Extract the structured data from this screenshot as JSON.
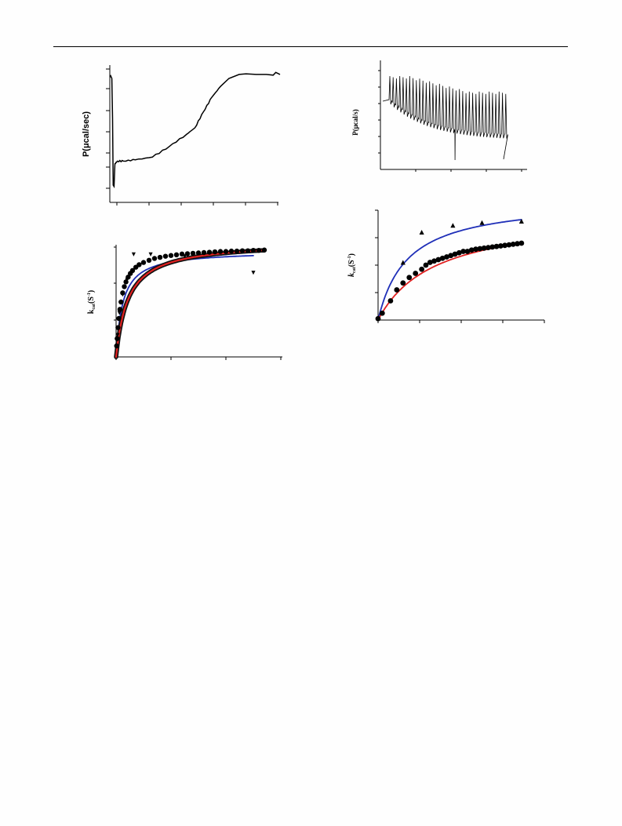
{
  "panels": {
    "a": {
      "ylabel": "P(μcal/sec)"
    },
    "b": {
      "ylabel": "P(μcal/s)"
    },
    "c": {
      "ylabel_main": "k",
      "ylabel_sub": "cat",
      "ylabel_unit": "(S",
      "ylabel_sup": "-1",
      "ylabel_close": ")"
    },
    "d": {
      "ylabel_main": "k",
      "ylabel_sub": "cat",
      "ylabel_unit": "(S",
      "ylabel_sup": "-1",
      "ylabel_close": ")"
    }
  },
  "colors": {
    "ink": "#000000",
    "fit_red": "#e02020",
    "fit_blue": "#1f2fb8",
    "fit_dark": "#111111"
  },
  "chart_data": [
    {
      "id": "a",
      "type": "line",
      "title": "",
      "xlabel": "",
      "ylabel": "P(μcal/sec)",
      "grid": false,
      "xlim": [
        0,
        10
      ],
      "ylim": [
        0,
        10
      ],
      "series": [
        {
          "x": [
            0,
            0.05,
            0.12,
            0.16,
            0.2,
            0.25,
            0.3,
            0.45,
            0.8,
            1.5,
            2.5,
            3.5,
            4.5,
            5.0,
            5.5,
            6.0,
            6.5,
            7.0,
            7.6,
            8.0,
            8.6,
            9.2,
            9.6,
            9.75,
            10.0
          ],
          "y": [
            9.1,
            9.2,
            9.0,
            6.0,
            1.0,
            0.9,
            2.6,
            2.8,
            2.8,
            2.9,
            3.1,
            3.9,
            4.8,
            5.3,
            6.5,
            7.6,
            8.4,
            9.0,
            9.3,
            9.35,
            9.3,
            9.3,
            9.25,
            9.45,
            9.3
          ]
        }
      ]
    },
    {
      "id": "b",
      "type": "line",
      "title": "",
      "xlabel": "",
      "ylabel": "P(μcal/s)",
      "grid": false,
      "xlim": [
        0,
        10
      ],
      "ylim": [
        0,
        10
      ],
      "n_injections": 36,
      "series": []
    },
    {
      "id": "c",
      "type": "scatter",
      "title": "",
      "xlabel": "",
      "ylabel": "kcat(S-1)",
      "grid": false,
      "xlim": [
        0,
        30
      ],
      "ylim": [
        0,
        3
      ],
      "series": [
        {
          "marker": "triangle-down",
          "x": [
            0.3,
            0.6,
            1.2,
            2.0,
            3.2,
            6.3,
            12.5,
            25.0
          ],
          "y": [
            0.6,
            1.2,
            1.7,
            2.1,
            2.8,
            2.8,
            2.75,
            2.3
          ]
        },
        {
          "marker": "circle",
          "x": [
            0.1,
            0.2,
            0.35,
            0.5,
            0.7,
            0.9,
            1.2,
            1.5,
            1.8,
            2.2,
            2.6,
            3.0,
            3.6,
            4.2,
            5.0,
            6.0,
            7.0,
            8.0,
            9.0,
            10.0,
            11.0,
            12.0,
            13.0,
            14.0,
            15.0,
            16.0,
            17.0,
            18.0,
            19.0,
            20.0,
            21.0,
            22.0,
            23.0,
            24.0,
            25.0,
            26.0,
            27.0
          ],
          "y": [
            0.3,
            0.5,
            0.8,
            1.05,
            1.3,
            1.5,
            1.75,
            1.92,
            2.05,
            2.18,
            2.28,
            2.36,
            2.45,
            2.52,
            2.58,
            2.64,
            2.69,
            2.72,
            2.75,
            2.77,
            2.79,
            2.81,
            2.82,
            2.83,
            2.84,
            2.85,
            2.86,
            2.87,
            2.88,
            2.88,
            2.89,
            2.89,
            2.9,
            2.9,
            2.91,
            2.91,
            2.92
          ]
        }
      ],
      "fits": [
        {
          "color": "blue",
          "vmax": 2.9,
          "km": 1.2,
          "xmax": 25
        },
        {
          "color": "dark",
          "vmax": 3.15,
          "km": 2.2,
          "xmax": 27
        },
        {
          "color": "red",
          "vmax": 3.15,
          "km": 2.2,
          "xmax": 27
        }
      ]
    },
    {
      "id": "d",
      "type": "scatter",
      "title": "",
      "xlabel": "",
      "ylabel": "kcat(S-1)",
      "grid": false,
      "xlim": [
        0,
        4
      ],
      "ylim": [
        0,
        4
      ],
      "series": [
        {
          "marker": "triangle-up",
          "x": [
            0.6,
            1.05,
            1.8,
            2.5,
            3.45
          ],
          "y": [
            2.1,
            3.2,
            3.45,
            3.55,
            3.6
          ]
        },
        {
          "marker": "circle",
          "x": [
            0.0,
            0.1,
            0.3,
            0.45,
            0.6,
            0.75,
            0.9,
            1.05,
            1.15,
            1.25,
            1.35,
            1.45,
            1.55,
            1.65,
            1.75,
            1.85,
            1.95,
            2.05,
            2.15,
            2.25,
            2.35,
            2.45,
            2.55,
            2.65,
            2.75,
            2.85,
            2.95,
            3.05,
            3.15,
            3.25,
            3.35,
            3.45
          ],
          "y": [
            0.05,
            0.25,
            0.7,
            1.1,
            1.35,
            1.55,
            1.7,
            1.85,
            2.0,
            2.1,
            2.15,
            2.2,
            2.25,
            2.3,
            2.35,
            2.4,
            2.45,
            2.5,
            2.5,
            2.55,
            2.58,
            2.6,
            2.62,
            2.64,
            2.66,
            2.68,
            2.7,
            2.72,
            2.74,
            2.76,
            2.78,
            2.8
          ]
        }
      ],
      "fits": [
        {
          "color": "blue",
          "vmax": 4.4,
          "km": 0.7,
          "xmax": 3.45
        },
        {
          "color": "red",
          "vmax": 3.9,
          "km": 1.35,
          "xmax": 3.45
        }
      ]
    }
  ]
}
